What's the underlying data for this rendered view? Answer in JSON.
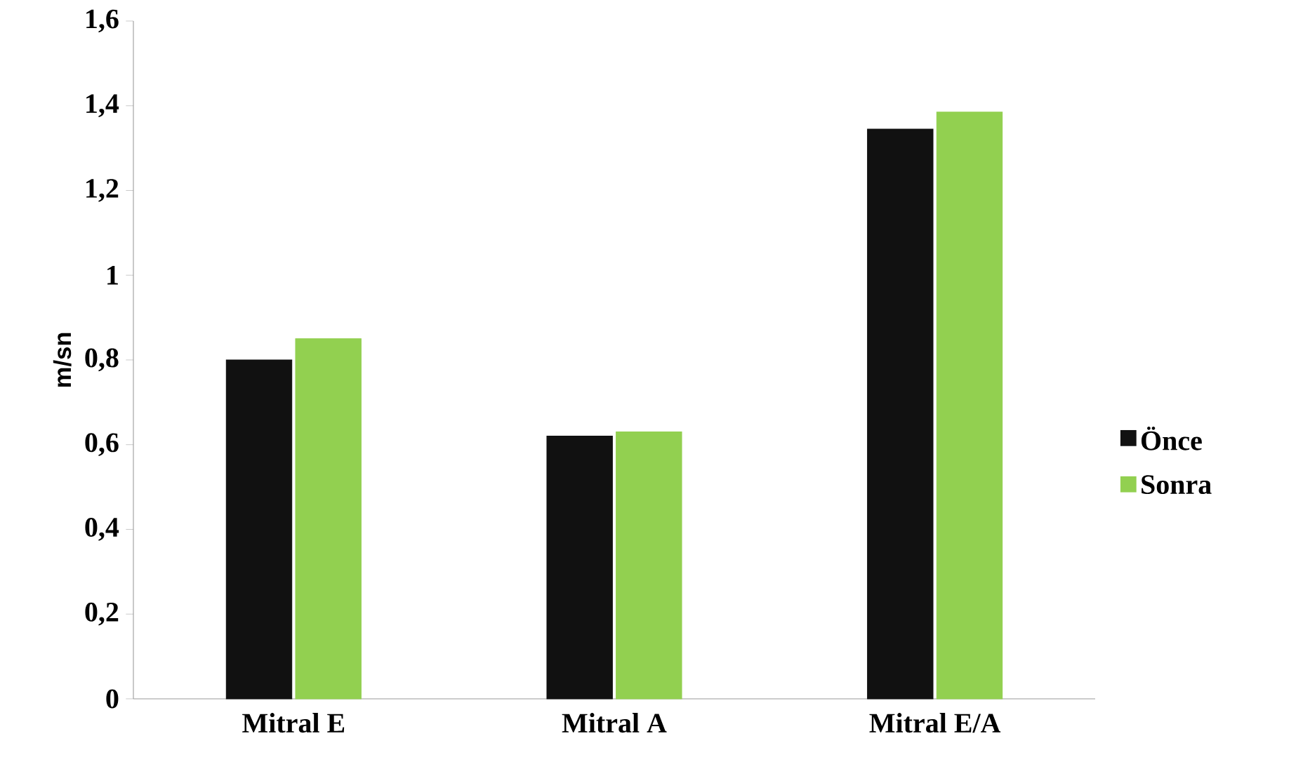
{
  "chart_data": {
    "type": "bar",
    "ylabel": "m/sn",
    "categories": [
      "Mitral E",
      "Mitral A",
      "Mitral E/A"
    ],
    "series": [
      {
        "name": "Önce",
        "color": "#111111",
        "values": [
          0.8,
          0.62,
          1.345
        ]
      },
      {
        "name": "Sonra",
        "color": "#92d050",
        "values": [
          0.85,
          0.63,
          1.385
        ]
      }
    ],
    "ylim": [
      0,
      1.6
    ],
    "yticks": [
      0,
      {
        "value": 0.2,
        "label": "0,2"
      },
      {
        "value": 0.4,
        "label": "0,4"
      },
      {
        "value": 0.6,
        "label": "0,6"
      },
      {
        "value": 0.8,
        "label": "0,8"
      },
      1,
      {
        "value": 1.2,
        "label": "1,2"
      },
      {
        "value": 1.4,
        "label": "1,4"
      },
      {
        "value": 1.6,
        "label": "1,6"
      }
    ],
    "grid": false,
    "legend": "right"
  }
}
